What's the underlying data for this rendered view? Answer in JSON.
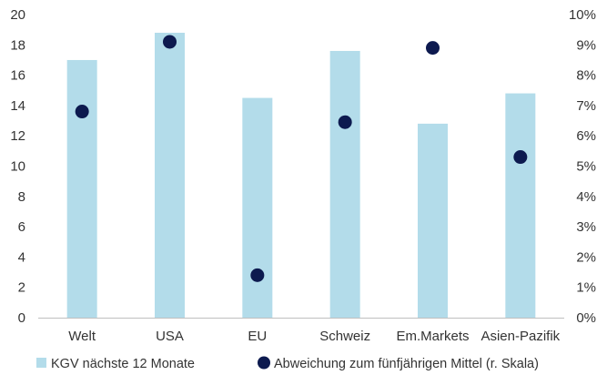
{
  "chart_data": {
    "type": "bar",
    "categories": [
      "Welt",
      "USA",
      "EU",
      "Schweiz",
      "Em.Markets",
      "Asien-Pazifik"
    ],
    "series": [
      {
        "name": "KGV nächste 12 Monate",
        "type": "bar",
        "axis": "left",
        "color": "#b3dcea",
        "values": [
          17.0,
          18.8,
          14.5,
          17.6,
          12.8,
          14.8
        ]
      },
      {
        "name": "Abweichung zum fünfjährigen Mittel (r. Skala)",
        "type": "scatter",
        "axis": "right",
        "color": "#0d1a4f",
        "values": [
          6.8,
          9.1,
          1.4,
          6.45,
          8.9,
          5.3
        ]
      }
    ],
    "ylim": [
      0,
      20
    ],
    "y_ticks": [
      "0",
      "2",
      "4",
      "6",
      "8",
      "10",
      "12",
      "14",
      "16",
      "18",
      "20"
    ],
    "y2lim": [
      0,
      10
    ],
    "y2_ticks": [
      "0%",
      "1%",
      "2%",
      "3%",
      "4%",
      "5%",
      "6%",
      "7%",
      "8%",
      "9%",
      "10%"
    ],
    "title": "",
    "xlabel": "",
    "ylabel": "",
    "grid": false,
    "legend_position": "bottom"
  }
}
